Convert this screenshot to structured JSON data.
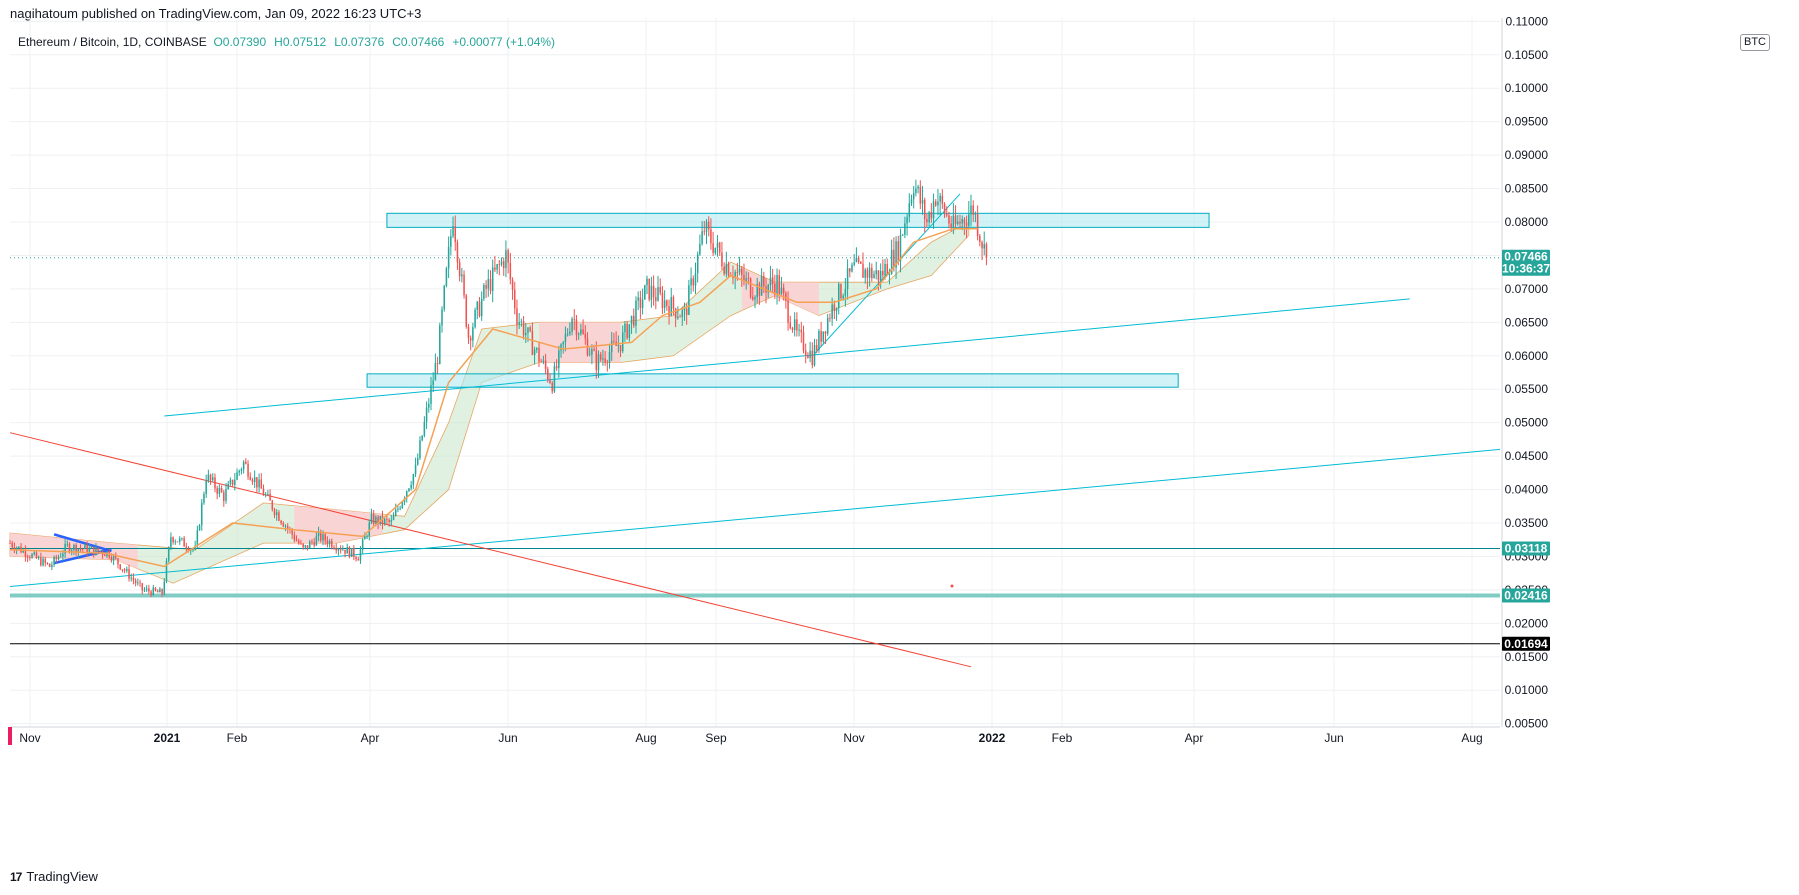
{
  "header": {
    "published": "nagihatoum published on TradingView.com, Jan 09, 2022 16:23 UTC+3"
  },
  "legend": {
    "symbol": "Ethereum / Bitcoin, 1D, COINBASE",
    "open": "O0.07390",
    "high": "H0.07512",
    "low": "L0.07376",
    "close": "C0.07466",
    "change": "+0.00077 (+1.04%)"
  },
  "unit": "BTC",
  "footer": {
    "brand": "TradingView",
    "logo_glyph": "17"
  },
  "colors": {
    "up": "#26a69a",
    "down": "#ef5350",
    "zone_fill": "#b2ebf2",
    "zone_stroke": "#00acc1",
    "trend_cyan": "#00bcd4",
    "trend_red": "#f44336",
    "kijun": "#f5a154",
    "cloud_green": "#c8e6c9",
    "cloud_red": "#ffcdd2"
  },
  "chart_data": {
    "type": "candlestick",
    "y_axis": {
      "ticks": [
        "0.11000",
        "0.10500",
        "0.10000",
        "0.09500",
        "0.09000",
        "0.08500",
        "0.08000",
        "0.07500",
        "0.07000",
        "0.06500",
        "0.06000",
        "0.05500",
        "0.05000",
        "0.04500",
        "0.04000",
        "0.03500",
        "0.03000",
        "0.02500",
        "0.02000",
        "0.01500",
        "0.01000",
        "0.00500"
      ],
      "range": [
        0.0045,
        0.1105
      ]
    },
    "x_axis": {
      "labels": [
        "Nov",
        "2021",
        "Feb",
        "Apr",
        "Jun",
        "Aug",
        "Sep",
        "Nov",
        "2022",
        "Feb",
        "Apr",
        "Jun",
        "Aug"
      ],
      "range": [
        "2020-10-23",
        "2022-08-30"
      ]
    },
    "price_tags": [
      {
        "value": "0.07466",
        "sub": "10:36:37",
        "color": "#26a69a"
      },
      {
        "value": "0.03118",
        "color": "#26a69a"
      },
      {
        "value": "0.02416",
        "color": "#26a69a"
      },
      {
        "value": "0.01694",
        "color": "#000000"
      }
    ],
    "close_anchors": [
      [
        "2020-10-23",
        0.032
      ],
      [
        "2020-11-10",
        0.0285
      ],
      [
        "2020-11-18",
        0.0315
      ],
      [
        "2020-12-07",
        0.0305
      ],
      [
        "2020-12-22",
        0.025
      ],
      [
        "2020-12-31",
        0.0245
      ],
      [
        "2021-01-04",
        0.033
      ],
      [
        "2021-01-15",
        0.031
      ],
      [
        "2021-01-20",
        0.042
      ],
      [
        "2021-01-28",
        0.039
      ],
      [
        "2021-02-06",
        0.044
      ],
      [
        "2021-02-20",
        0.037
      ],
      [
        "2021-03-05",
        0.031
      ],
      [
        "2021-03-12",
        0.033
      ],
      [
        "2021-03-30",
        0.03
      ],
      [
        "2021-04-05",
        0.0355
      ],
      [
        "2021-04-14",
        0.035
      ],
      [
        "2021-04-25",
        0.043
      ],
      [
        "2021-05-05",
        0.06
      ],
      [
        "2021-05-12",
        0.081
      ],
      [
        "2021-05-19",
        0.063
      ],
      [
        "2021-05-27",
        0.07
      ],
      [
        "2021-06-05",
        0.075
      ],
      [
        "2021-06-10",
        0.066
      ],
      [
        "2021-06-26",
        0.056
      ],
      [
        "2021-07-05",
        0.066
      ],
      [
        "2021-07-16",
        0.059
      ],
      [
        "2021-07-27",
        0.062
      ],
      [
        "2021-08-08",
        0.07
      ],
      [
        "2021-08-25",
        0.066
      ],
      [
        "2021-09-03",
        0.079
      ],
      [
        "2021-09-12",
        0.074
      ],
      [
        "2021-09-25",
        0.07
      ],
      [
        "2021-10-06",
        0.071
      ],
      [
        "2021-10-15",
        0.063
      ],
      [
        "2021-10-22",
        0.06
      ],
      [
        "2021-11-01",
        0.068
      ],
      [
        "2021-11-10",
        0.073
      ],
      [
        "2021-11-22",
        0.072
      ],
      [
        "2021-11-30",
        0.076
      ],
      [
        "2021-12-07",
        0.086
      ],
      [
        "2021-12-13",
        0.08
      ],
      [
        "2021-12-17",
        0.084
      ],
      [
        "2021-12-25",
        0.079
      ],
      [
        "2022-01-03",
        0.082
      ],
      [
        "2022-01-09",
        0.07466
      ]
    ],
    "kijun_line": [
      [
        "2020-10-23",
        0.031
      ],
      [
        "2020-12-05",
        0.0305
      ],
      [
        "2021-01-01",
        0.0285
      ],
      [
        "2021-02-01",
        0.035
      ],
      [
        "2021-03-01",
        0.034
      ],
      [
        "2021-04-01",
        0.033
      ],
      [
        "2021-04-25",
        0.04
      ],
      [
        "2021-05-10",
        0.056
      ],
      [
        "2021-05-30",
        0.064
      ],
      [
        "2021-07-01",
        0.061
      ],
      [
        "2021-08-01",
        0.062
      ],
      [
        "2021-08-15",
        0.066
      ],
      [
        "2021-09-01",
        0.068
      ],
      [
        "2021-09-15",
        0.072
      ],
      [
        "2021-10-15",
        0.068
      ],
      [
        "2021-11-01",
        0.068
      ],
      [
        "2021-11-20",
        0.07
      ],
      [
        "2021-12-07",
        0.077
      ],
      [
        "2021-12-25",
        0.079
      ],
      [
        "2022-01-05",
        0.079
      ]
    ],
    "cloud_top": [
      [
        "2020-10-23",
        0.0335
      ],
      [
        "2020-12-10",
        0.032
      ],
      [
        "2021-01-15",
        0.031
      ],
      [
        "2021-02-15",
        0.038
      ],
      [
        "2021-03-20",
        0.037
      ],
      [
        "2021-04-20",
        0.036
      ],
      [
        "2021-05-10",
        0.05
      ],
      [
        "2021-05-25",
        0.064
      ],
      [
        "2021-06-20",
        0.065
      ],
      [
        "2021-07-27",
        0.065
      ],
      [
        "2021-08-20",
        0.066
      ],
      [
        "2021-09-15",
        0.074
      ],
      [
        "2021-10-05",
        0.071
      ],
      [
        "2021-10-25",
        0.071
      ],
      [
        "2021-11-25",
        0.071
      ],
      [
        "2021-12-15",
        0.077
      ],
      [
        "2022-01-01",
        0.08
      ]
    ],
    "cloud_bottom": [
      [
        "2020-10-23",
        0.03
      ],
      [
        "2020-12-10",
        0.0295
      ],
      [
        "2021-01-05",
        0.026
      ],
      [
        "2021-02-15",
        0.032
      ],
      [
        "2021-03-20",
        0.032
      ],
      [
        "2021-04-20",
        0.034
      ],
      [
        "2021-05-10",
        0.04
      ],
      [
        "2021-05-25",
        0.056
      ],
      [
        "2021-06-20",
        0.059
      ],
      [
        "2021-07-27",
        0.059
      ],
      [
        "2021-08-20",
        0.06
      ],
      [
        "2021-09-15",
        0.066
      ],
      [
        "2021-10-05",
        0.069
      ],
      [
        "2021-10-25",
        0.066
      ],
      [
        "2021-11-25",
        0.07
      ],
      [
        "2021-12-15",
        0.072
      ],
      [
        "2022-01-01",
        0.078
      ]
    ],
    "zones": [
      {
        "from": "2021-04-12",
        "to": "2022-04-20",
        "top": 0.0813,
        "bottom": 0.0792
      },
      {
        "from": "2021-04-03",
        "to": "2022-04-06",
        "top": 0.0573,
        "bottom": 0.0553
      }
    ],
    "trendlines_cyan": [
      [
        [
          "2021-01-01",
          0.051
        ],
        [
          "2022-07-20",
          0.0685
        ]
      ],
      [
        [
          "2020-10-23",
          0.0255
        ],
        [
          "2022-08-30",
          0.046
        ]
      ],
      [
        [
          "2021-10-23",
          0.0603
        ],
        [
          "2021-12-28",
          0.0842
        ]
      ],
      [
        [
          "2020-11-12",
          0.029
        ],
        [
          "2020-12-05",
          0.031
        ]
      ]
    ],
    "trendlines_blue": [
      [
        [
          "2020-11-12",
          0.0333
        ],
        [
          "2020-12-08",
          0.0308
        ]
      ],
      [
        [
          "2020-11-12",
          0.029
        ],
        [
          "2020-12-08",
          0.031
        ]
      ]
    ],
    "trendlines_red": [
      [
        [
          "2020-10-23",
          0.0485
        ],
        [
          "2022-01-02",
          0.0135
        ]
      ]
    ],
    "horizontal_levels": [
      {
        "value": 0.03118,
        "color": "#00838f",
        "width": 1
      },
      {
        "value": 0.02416,
        "color": "#80cbc4",
        "width": 4
      },
      {
        "value": 0.01694,
        "color": "#000000",
        "width": 1
      },
      {
        "value": 0.07466,
        "color": "#26a69a",
        "width": 1,
        "dotted": true
      }
    ]
  }
}
